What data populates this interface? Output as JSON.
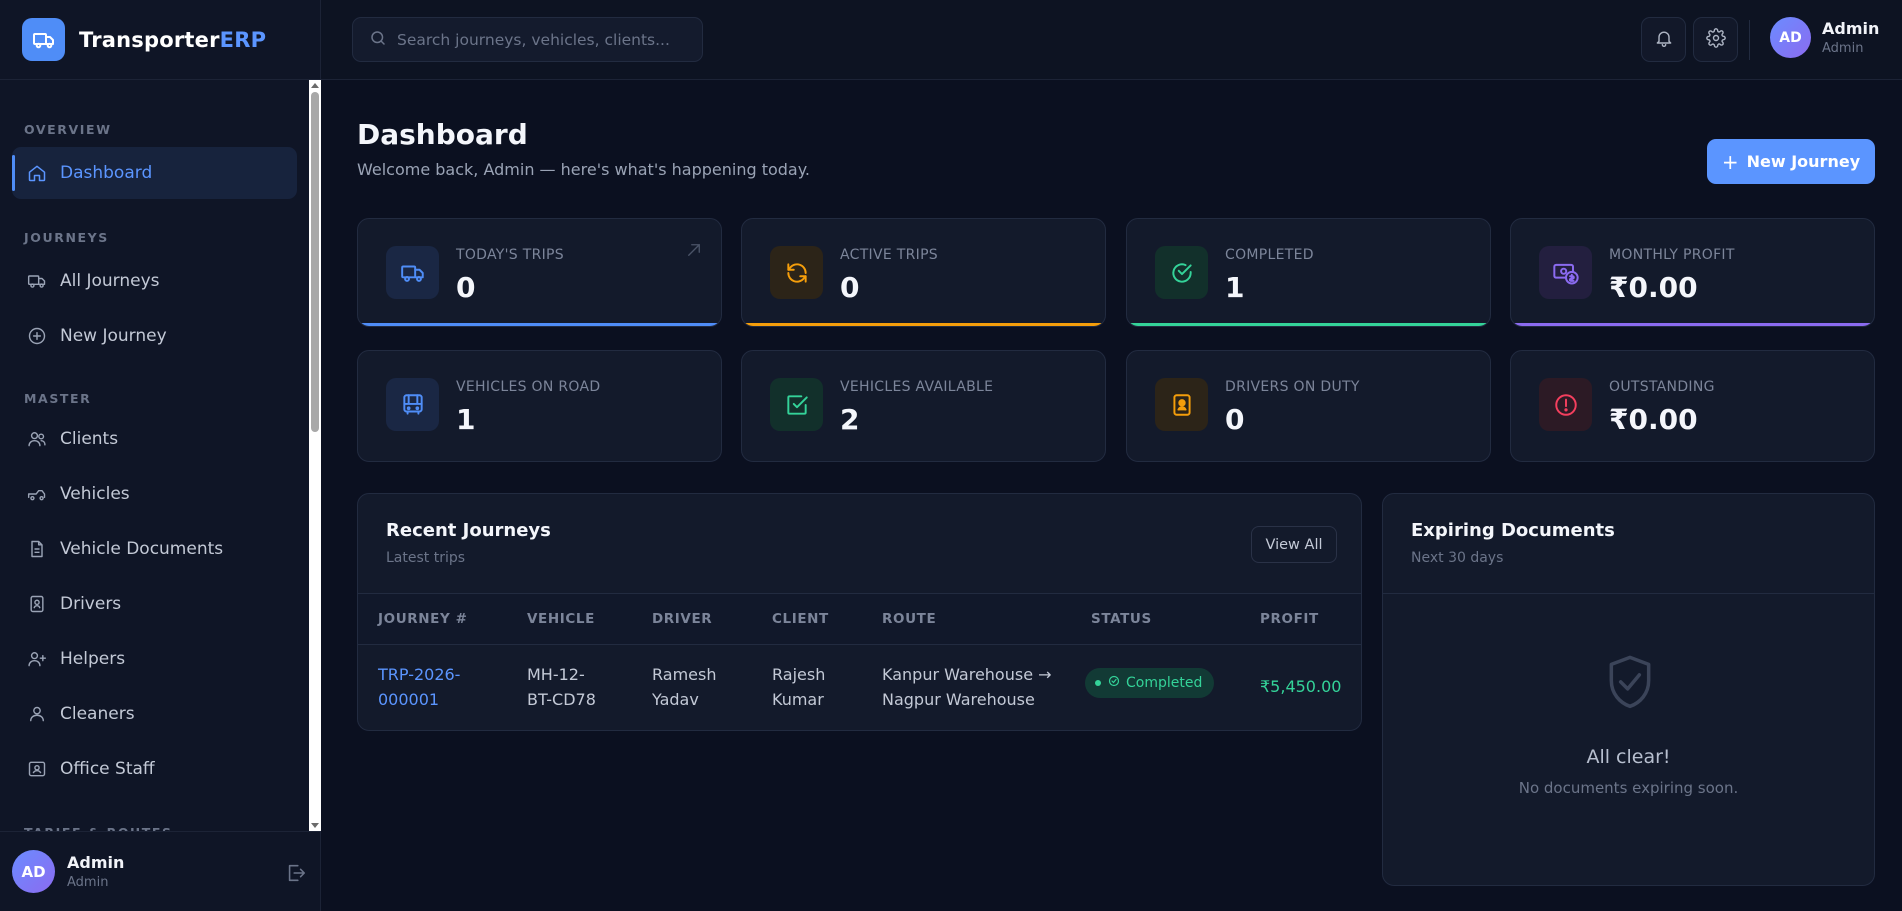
{
  "brand": {
    "name_part1": "Transporter",
    "name_part2": "ERP"
  },
  "search": {
    "placeholder": "Search journeys, vehicles, clients..."
  },
  "user": {
    "initials": "AD",
    "name": "Admin",
    "role": "Admin"
  },
  "sidebar": {
    "sections": {
      "overview": "OVERVIEW",
      "journeys": "JOURNEYS",
      "master": "MASTER",
      "tariff": "TARIFF & ROUTES"
    },
    "items": {
      "dashboard": "Dashboard",
      "all_journeys": "All Journeys",
      "new_journey": "New Journey",
      "clients": "Clients",
      "vehicles": "Vehicles",
      "vehicle_documents": "Vehicle Documents",
      "drivers": "Drivers",
      "helpers": "Helpers",
      "cleaners": "Cleaners",
      "office_staff": "Office Staff"
    }
  },
  "page": {
    "title": "Dashboard",
    "subtitle": "Welcome back, Admin — here's what's happening today.",
    "new_journey_label": "New Journey"
  },
  "stats": [
    {
      "label": "TODAY'S TRIPS",
      "value": "0",
      "icon": "truck-icon",
      "color": "#4f8df7"
    },
    {
      "label": "ACTIVE TRIPS",
      "value": "0",
      "icon": "refresh-icon",
      "color": "#f59e0b"
    },
    {
      "label": "COMPLETED",
      "value": "1",
      "icon": "check-circle-icon",
      "color": "#34d399"
    },
    {
      "label": "MONTHLY PROFIT",
      "value": "₹0.00",
      "icon": "money-icon",
      "color": "#8b6bf0"
    },
    {
      "label": "VEHICLES ON ROAD",
      "value": "1",
      "icon": "bus-icon",
      "color": "#4f8df7"
    },
    {
      "label": "VEHICLES AVAILABLE",
      "value": "2",
      "icon": "check-square-icon",
      "color": "#34d399"
    },
    {
      "label": "DRIVERS ON DUTY",
      "value": "0",
      "icon": "id-badge-icon",
      "color": "#f59e0b"
    },
    {
      "label": "OUTSTANDING",
      "value": "₹0.00",
      "icon": "alert-circle-icon",
      "color": "#f43f5e"
    }
  ],
  "recent": {
    "title": "Recent Journeys",
    "subtitle": "Latest trips",
    "view_all": "View All",
    "columns": [
      "JOURNEY #",
      "VEHICLE",
      "DRIVER",
      "CLIENT",
      "ROUTE",
      "STATUS",
      "PROFIT"
    ],
    "rows": [
      {
        "journey_line1": "TRP-2026-",
        "journey_line2": "000001",
        "vehicle_line1": "MH-12-",
        "vehicle_line2": "BT-CD78",
        "driver_line1": "Ramesh",
        "driver_line2": "Yadav",
        "client_line1": "Rajesh",
        "client_line2": "Kumar",
        "route_line1": "Kanpur Warehouse →",
        "route_line2": "Nagpur Warehouse",
        "status": "Completed",
        "profit": "₹5,450.00"
      }
    ]
  },
  "expiring": {
    "title": "Expiring Documents",
    "subtitle": "Next 30 days",
    "empty_title": "All clear!",
    "empty_sub": "No documents expiring soon."
  }
}
